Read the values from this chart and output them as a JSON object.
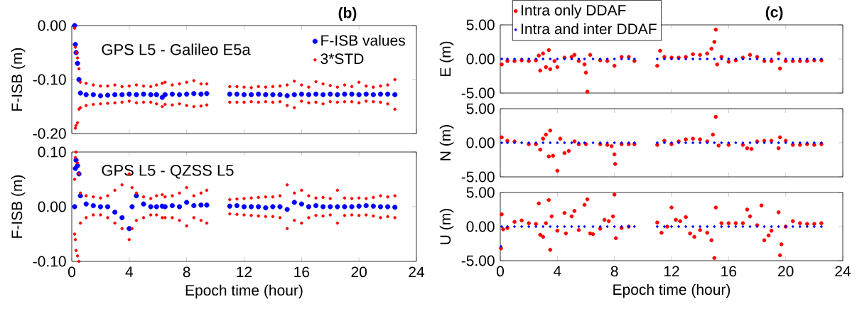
{
  "chart_data": [
    {
      "type": "scatter",
      "title": "(b)",
      "ylabel": "F-ISB (m)",
      "annotations": [
        "GPS L5 - Galileo E5a"
      ],
      "xlim": [
        0,
        24
      ],
      "xticks": [
        0,
        4,
        8,
        12,
        16,
        20,
        24
      ],
      "ylim": [
        -0.2,
        0
      ],
      "yticks": [
        {
          "value": -0.2,
          "label": "-0.20"
        },
        {
          "value": -0.1,
          "label": "-0.10"
        },
        {
          "value": 0,
          "label": "0.00"
        }
      ],
      "tick_labels": "y",
      "marker": "circle",
      "legend": "top right",
      "x": [
        0.2,
        0.25,
        0.3,
        0.4,
        0.5,
        0.6,
        1,
        1.5,
        2,
        2.5,
        3,
        3.5,
        4,
        4.5,
        5,
        5.5,
        5.9,
        6.3,
        6.5,
        7,
        7.5,
        8,
        8.5,
        9,
        9.4,
        11,
        11.5,
        12,
        12.5,
        13,
        13.5,
        14,
        14.5,
        15,
        15.5,
        16,
        16.5,
        17,
        17.5,
        18,
        18.5,
        19,
        19.5,
        20,
        20.5,
        21,
        21.5,
        22,
        22.5
      ],
      "series": [
        {
          "name": "F-ISB values",
          "color": "#0000ff",
          "values": [
            0,
            -0.035,
            -0.05,
            -0.07,
            -0.1,
            -0.125,
            -0.128,
            -0.128,
            -0.13,
            -0.129,
            -0.128,
            -0.128,
            -0.127,
            -0.128,
            -0.127,
            -0.128,
            -0.128,
            -0.133,
            -0.128,
            -0.127,
            -0.128,
            -0.127,
            -0.126,
            -0.127,
            -0.126,
            -0.127,
            -0.127,
            -0.128,
            -0.128,
            -0.127,
            -0.128,
            -0.128,
            -0.128,
            -0.13,
            -0.128,
            -0.127,
            -0.128,
            -0.127,
            -0.128,
            -0.127,
            -0.128,
            -0.127,
            -0.127,
            -0.128,
            -0.127,
            -0.128,
            -0.127,
            -0.127,
            -0.128
          ]
        },
        {
          "name": "3*STD",
          "color": "#ff0000",
          "values": [
            -0.005,
            -0.04,
            -0.05,
            -0.06,
            -0.08,
            -0.105,
            -0.107,
            -0.11,
            -0.112,
            -0.112,
            -0.11,
            -0.113,
            -0.112,
            -0.11,
            -0.112,
            -0.113,
            -0.11,
            -0.107,
            -0.105,
            -0.11,
            -0.108,
            -0.105,
            -0.102,
            -0.108,
            -0.108,
            -0.113,
            -0.113,
            -0.114,
            -0.115,
            -0.113,
            -0.114,
            -0.113,
            -0.112,
            -0.11,
            -0.103,
            -0.11,
            -0.114,
            -0.104,
            -0.108,
            -0.111,
            -0.114,
            -0.11,
            -0.113,
            -0.105,
            -0.112,
            -0.114,
            -0.112,
            -0.11,
            -0.1
          ]
        },
        {
          "color": "#ff0000",
          "values": [
            null,
            -0.19,
            -0.185,
            -0.18,
            -0.155,
            -0.152,
            -0.148,
            -0.146,
            -0.145,
            -0.144,
            -0.143,
            -0.142,
            -0.14,
            -0.143,
            -0.142,
            -0.142,
            -0.145,
            -0.15,
            -0.146,
            -0.147,
            -0.145,
            -0.148,
            -0.15,
            -0.149,
            -0.147,
            -0.142,
            -0.142,
            -0.142,
            -0.141,
            -0.142,
            -0.141,
            -0.142,
            -0.141,
            -0.148,
            -0.152,
            -0.14,
            -0.143,
            -0.142,
            -0.145,
            -0.141,
            -0.142,
            -0.141,
            -0.141,
            -0.143,
            -0.14,
            -0.141,
            -0.142,
            -0.145,
            -0.155
          ]
        }
      ]
    },
    {
      "type": "scatter",
      "xlabel": "Epoch time (hour)",
      "ylabel": "F-ISB (m)",
      "annotations": [
        "GPS L5 - QZSS L5"
      ],
      "xlim": [
        0,
        24
      ],
      "xticks": [
        0,
        4,
        8,
        12,
        16,
        20,
        24
      ],
      "ylim": [
        -0.1,
        0.1
      ],
      "yticks": [
        {
          "value": -0.1,
          "label": "-0.10"
        },
        {
          "value": 0,
          "label": "0.00"
        },
        {
          "value": 0.1,
          "label": "0.10"
        }
      ],
      "marker": "circle",
      "x": [
        0.2,
        0.25,
        0.3,
        0.4,
        0.5,
        0.6,
        1,
        1.5,
        2,
        2.5,
        3,
        3.5,
        4,
        4.2,
        4.5,
        5,
        5.5,
        5.9,
        6.3,
        6.5,
        7,
        7.5,
        8,
        8.5,
        9,
        9.4,
        11,
        11.5,
        12,
        12.5,
        13,
        13.5,
        14,
        14.5,
        15,
        15.5,
        16,
        16.5,
        17,
        17.5,
        18,
        18.5,
        19,
        19.5,
        20,
        20.5,
        21,
        21.5,
        22,
        22.5
      ],
      "series": [
        {
          "color": "#0000ff",
          "values": [
            0,
            0.07,
            0.085,
            0.075,
            0.06,
            0.02,
            0.005,
            0.002,
            0,
            0,
            -0.01,
            -0.02,
            -0.04,
            0,
            0.02,
            0.005,
            0,
            0,
            0.001,
            0,
            0.002,
            0,
            0.008,
            0.002,
            0.003,
            0.003,
            0.001,
            0.002,
            0,
            0,
            0,
            -0.002,
            0,
            0,
            -0.005,
            0.008,
            0.005,
            0,
            0.002,
            0,
            0,
            0,
            0,
            0,
            0.001,
            0.002,
            0.001,
            0,
            0,
            -0.001
          ]
        },
        {
          "color": "#ff0000",
          "values": [
            0.05,
            0.09,
            0.1,
            0.08,
            0.06,
            0.025,
            0.02,
            0.018,
            0.016,
            0.02,
            0.03,
            0.04,
            0.06,
            0.035,
            0.025,
            0.018,
            0.015,
            0.02,
            0.022,
            0.018,
            0.02,
            0.025,
            0.035,
            0.02,
            0.025,
            0.03,
            0.013,
            0.014,
            0.015,
            0.016,
            0.017,
            0.018,
            0.018,
            0.02,
            0.04,
            0.025,
            0.03,
            0.02,
            0.016,
            0.017,
            0.015,
            0.03,
            0.016,
            0.015,
            0.016,
            0.015,
            0.017,
            0.02,
            0.018,
            0.02
          ]
        },
        {
          "color": "#ff0000",
          "values": [
            -0.05,
            -0.06,
            -0.08,
            -0.09,
            -0.1,
            -0.03,
            -0.02,
            -0.015,
            -0.015,
            -0.02,
            -0.03,
            -0.04,
            -0.06,
            -0.04,
            -0.025,
            -0.02,
            -0.015,
            -0.015,
            -0.02,
            -0.02,
            -0.02,
            -0.025,
            -0.035,
            -0.02,
            -0.025,
            -0.03,
            -0.013,
            -0.014,
            -0.015,
            -0.016,
            -0.017,
            -0.018,
            -0.018,
            -0.02,
            -0.04,
            -0.025,
            -0.03,
            -0.02,
            -0.016,
            -0.017,
            -0.015,
            -0.03,
            -0.016,
            -0.015,
            -0.016,
            -0.015,
            -0.017,
            -0.02,
            -0.018,
            -0.02
          ]
        }
      ]
    },
    {
      "type": "scatter",
      "title": "(c)",
      "ylabel": "E (m)",
      "xlim": [
        0,
        24
      ],
      "xticks": [
        0,
        4,
        8,
        12,
        16,
        20,
        24
      ],
      "ylim": [
        -5,
        5
      ],
      "yticks": [
        {
          "value": -5,
          "label": "-5.00"
        },
        {
          "value": 0,
          "label": "0.00"
        },
        {
          "value": 5,
          "label": "5.00"
        }
      ],
      "tick_labels": "y",
      "marker": "circle",
      "legend": "top left",
      "series": [
        {
          "name": "Intra only DDAF",
          "color": "#ff0000",
          "x": [
            0.1,
            0.5,
            1,
            1.5,
            2,
            2.5,
            2.7,
            2.8,
            3,
            3.2,
            3.4,
            3.5,
            3.8,
            4,
            4.5,
            5,
            5.2,
            5.5,
            5.9,
            6,
            6.1,
            6.3,
            7,
            7.5,
            8,
            8.5,
            9,
            9.4,
            11,
            11.2,
            11.5,
            12,
            12.5,
            13,
            13.5,
            14,
            14.5,
            14.8,
            15,
            15.1,
            15.2,
            15.5,
            16,
            16.5,
            17,
            17.5,
            18,
            18.5,
            19,
            19.5,
            19.6,
            20,
            20.5,
            21,
            21.5,
            22,
            22.5
          ],
          "values": [
            -0.8,
            -0.3,
            -0.3,
            -0.2,
            -0.3,
            -0.2,
            0.5,
            -1.7,
            0.8,
            -1.2,
            1.3,
            -1.5,
            -0.3,
            -1.2,
            0.2,
            0.3,
            0.6,
            -0.3,
            -0.8,
            -2,
            -4.8,
            0.6,
            -0.2,
            -0.3,
            -1,
            0.3,
            0.3,
            -0.3,
            -1,
            1.2,
            0.3,
            0.2,
            0.2,
            0.3,
            0.7,
            0.6,
            0.8,
            1.5,
            2.5,
            4.3,
            -0.8,
            0.3,
            -0.4,
            -0.2,
            0.2,
            0.6,
            0.3,
            -0.3,
            -0.3,
            0.8,
            -1.4,
            -0.3,
            -0.3,
            -0.3,
            -0.3,
            -0.2,
            -0.2
          ]
        },
        {
          "name": "Intra and inter DDAF",
          "color": "#0000ff",
          "x": [
            0.1,
            0.5,
            1,
            1.5,
            2,
            2.5,
            3,
            3.5,
            4,
            4.5,
            5,
            5.5,
            5.9,
            6.5,
            7,
            7.5,
            8,
            8.5,
            9,
            9.4,
            11,
            11.5,
            12,
            12.5,
            13,
            13.5,
            14,
            14.5,
            15,
            15.5,
            16,
            16.5,
            17,
            17.5,
            18,
            18.5,
            19,
            19.5,
            20,
            20.5,
            21,
            21.5,
            22,
            22.5
          ],
          "values": [
            0,
            0,
            0,
            0,
            0,
            0,
            0,
            0,
            0,
            0,
            0,
            0,
            0,
            0,
            0,
            0,
            0,
            0,
            0,
            0,
            0,
            0,
            0,
            0,
            0,
            0,
            0,
            0,
            0,
            0,
            0,
            0,
            0,
            0,
            0,
            0,
            0,
            0,
            0,
            0,
            0,
            0,
            0,
            0
          ]
        }
      ]
    },
    {
      "type": "scatter",
      "ylabel": "N (m)",
      "xlim": [
        0,
        24
      ],
      "xticks": [
        0,
        4,
        8,
        12,
        16,
        20,
        24
      ],
      "ylim": [
        -5,
        5
      ],
      "yticks": [
        {
          "value": -5,
          "label": "-5.00"
        },
        {
          "value": 0,
          "label": "0.00"
        },
        {
          "value": 5,
          "label": "5.00"
        }
      ],
      "tick_labels": "y",
      "marker": "circle",
      "series": [
        {
          "color": "#ff0000",
          "x": [
            0.1,
            0.5,
            1,
            2,
            2.5,
            2.8,
            3,
            3.2,
            3.4,
            3.5,
            3.7,
            4,
            4.2,
            4.5,
            4.8,
            5.2,
            5.5,
            6,
            7,
            7.5,
            7.8,
            8,
            8.05,
            8.5,
            9,
            9.4,
            11,
            11.5,
            12,
            12.5,
            13,
            13.5,
            14,
            14.5,
            14.9,
            15.1,
            15.3,
            16,
            17,
            17.3,
            17.6,
            18,
            18.5,
            19,
            19.5,
            19.6,
            20,
            20.5,
            21,
            21.5,
            22,
            22.5
          ],
          "values": [
            0.8,
            0.3,
            0.2,
            -0.2,
            -0.2,
            -1,
            0.6,
            1.2,
            -2,
            1.8,
            -1.9,
            -4.1,
            0.6,
            -1.5,
            -1.2,
            0.2,
            -0.2,
            -0.2,
            -0.2,
            -0.3,
            -0.5,
            -1.7,
            -3.1,
            -0.2,
            -0.2,
            -0.2,
            -0.3,
            0.3,
            -0.2,
            0.2,
            0.5,
            0.6,
            0.5,
            0.2,
            1.2,
            3.8,
            -0.4,
            -0.3,
            -0.3,
            -0.8,
            -0.9,
            0.2,
            0.3,
            0.3,
            -0.8,
            0.8,
            0.3,
            -0.3,
            -0.3,
            -0.2,
            -0.3,
            -0.2
          ]
        },
        {
          "color": "#0000ff",
          "x": [
            0.1,
            0.5,
            1,
            1.5,
            2,
            2.5,
            3,
            3.5,
            4,
            4.5,
            5,
            5.5,
            5.9,
            6.5,
            7,
            7.5,
            8,
            8.5,
            9,
            9.4,
            11,
            11.5,
            12,
            12.5,
            13,
            13.5,
            14,
            14.5,
            15,
            15.5,
            16,
            16.5,
            17,
            17.5,
            18,
            18.5,
            19,
            19.5,
            20,
            20.5,
            21,
            21.5,
            22,
            22.5
          ],
          "values": [
            0,
            0,
            0,
            0,
            0,
            0,
            0,
            0,
            0,
            0,
            0,
            0,
            0,
            0,
            0,
            0,
            0,
            0,
            0,
            0,
            0,
            0,
            0,
            0,
            0,
            0,
            0,
            0,
            0,
            0,
            0,
            0,
            0,
            0,
            0,
            0,
            0,
            0,
            0,
            0,
            0,
            0,
            0,
            0
          ]
        }
      ]
    },
    {
      "type": "scatter",
      "xlabel": "Epoch time (hour)",
      "ylabel": "U (m)",
      "xlim": [
        0,
        24
      ],
      "xticks": [
        0,
        4,
        8,
        12,
        16,
        20,
        24
      ],
      "ylim": [
        -5,
        5
      ],
      "yticks": [
        {
          "value": -5,
          "label": "-5.00"
        },
        {
          "value": 0,
          "label": "0.00"
        },
        {
          "value": 5,
          "label": "5.00"
        }
      ],
      "marker": "circle",
      "series": [
        {
          "color": "#ff0000",
          "x": [
            0.05,
            0.1,
            0.2,
            0.5,
            1,
            1.5,
            2,
            2.5,
            2.7,
            2.8,
            3,
            3.2,
            3.4,
            3.5,
            3.6,
            4,
            4.5,
            4.6,
            5,
            5.2,
            5.5,
            5.9,
            6.1,
            6.3,
            6.5,
            7,
            7.3,
            7.6,
            7.9,
            8,
            8.1,
            8.5,
            9,
            11,
            11.3,
            11.7,
            12,
            12.3,
            12.6,
            13,
            13.3,
            13.6,
            14,
            14.5,
            14.8,
            15,
            15.1,
            15.5,
            16,
            16.5,
            17,
            17.3,
            17.5,
            18,
            18.3,
            18.5,
            18.8,
            19,
            19.5,
            19.6,
            19.7,
            20,
            20.5,
            21,
            21.5,
            22,
            22.5
          ],
          "values": [
            -3.2,
            1.8,
            -0.4,
            -0.2,
            0.7,
            0.9,
            0.5,
            0.4,
            3.4,
            -1.2,
            -1.5,
            0.5,
            3.9,
            -3.4,
            1.5,
            -0.6,
            2,
            -1,
            1.5,
            2.3,
            -0.5,
            3.2,
            4,
            -1,
            -1.1,
            -0.3,
            1,
            0.8,
            1.5,
            4.7,
            -1.7,
            -0.2,
            0,
            0.6,
            -0.9,
            0,
            2.8,
            1,
            0.8,
            1.4,
            -1,
            -1.5,
            -0.5,
            -0.9,
            -2,
            -4.6,
            2.8,
            0.5,
            0.5,
            0.5,
            0.5,
            2.5,
            1.5,
            0.2,
            3.1,
            -2,
            -1.3,
            -0.6,
            2.1,
            -4.2,
            -2.6,
            0,
            0.8,
            0.5,
            0.4,
            0.4,
            0.5
          ]
        },
        {
          "color": "#0000ff",
          "x": [
            0.05,
            0.1,
            0.5,
            1,
            1.5,
            2,
            2.5,
            3,
            3.5,
            4,
            4.5,
            5,
            5.5,
            5.9,
            6.5,
            7,
            7.5,
            8,
            8.5,
            9,
            9.4,
            11,
            11.5,
            12,
            12.5,
            13,
            13.5,
            14,
            14.5,
            15,
            15.5,
            16,
            16.5,
            17,
            17.5,
            18,
            18.5,
            19,
            19.5,
            20,
            20.5,
            21,
            21.5,
            22,
            22.5
          ],
          "values": [
            -2.9,
            0,
            0,
            0,
            0,
            0,
            0,
            0,
            0,
            0,
            0,
            0,
            0,
            0,
            0,
            0,
            0,
            0,
            0,
            0,
            0,
            0,
            0,
            0,
            0,
            0,
            0,
            0,
            0,
            0,
            0,
            0,
            0,
            0,
            0,
            0,
            0,
            0,
            0,
            0,
            0,
            0,
            0,
            0,
            0
          ]
        }
      ]
    }
  ]
}
